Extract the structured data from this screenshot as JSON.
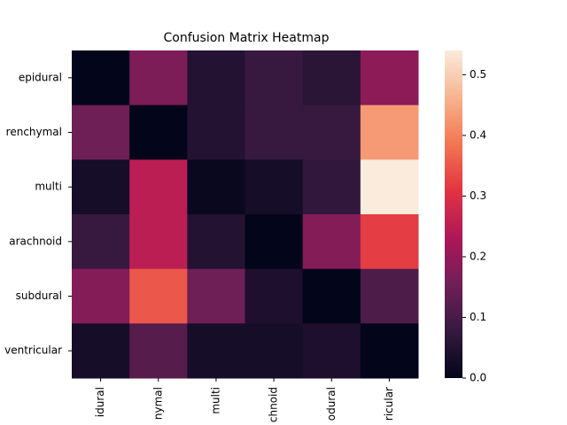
{
  "chart_data": {
    "type": "heatmap",
    "title": "Confusion Matrix Heatmap",
    "x_categories": [
      "idural",
      "nymal",
      "multi",
      "chnoid",
      "odural",
      "ricular"
    ],
    "y_categories": [
      "epidural",
      "renchymal",
      "multi",
      "arachnoid",
      "subdural",
      "ventricular"
    ],
    "values": [
      [
        0.0,
        0.17,
        0.05,
        0.08,
        0.06,
        0.19
      ],
      [
        0.15,
        0.0,
        0.05,
        0.08,
        0.08,
        0.43
      ],
      [
        0.03,
        0.25,
        0.01,
        0.03,
        0.07,
        0.54
      ],
      [
        0.08,
        0.25,
        0.05,
        0.0,
        0.18,
        0.32
      ],
      [
        0.18,
        0.35,
        0.15,
        0.04,
        0.0,
        0.11
      ],
      [
        0.03,
        0.12,
        0.03,
        0.03,
        0.04,
        0.0
      ]
    ],
    "colormap": [
      "#03051a",
      "#35193e",
      "#701f57",
      "#ad1759",
      "#e13342",
      "#f37651",
      "#f6b48f",
      "#faebdd"
    ],
    "clim": [
      0,
      0.54
    ],
    "cticks": [
      {
        "value": 0,
        "label": "0.0"
      },
      0.1,
      0.2,
      0.3,
      0.4,
      0.5
    ]
  }
}
